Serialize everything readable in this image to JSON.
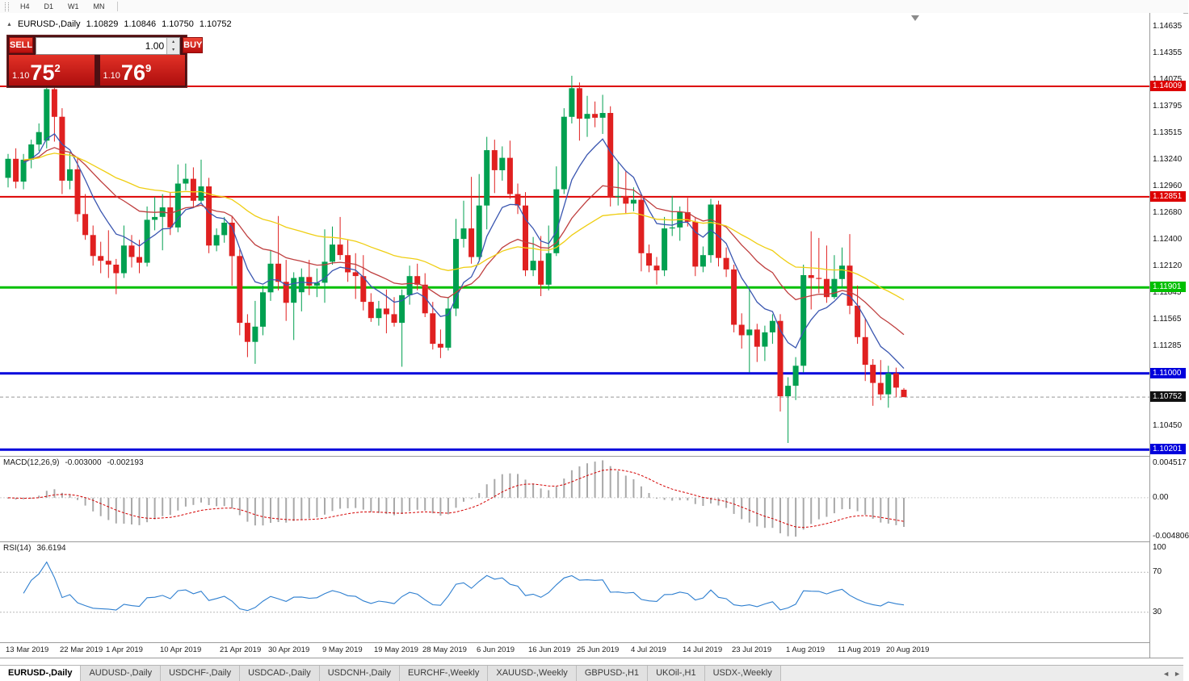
{
  "toolbar": {
    "buttons": [
      "H4",
      "D1",
      "W1",
      "MN"
    ]
  },
  "chart_header": {
    "title": "EURUSD-,Daily",
    "open": "1.10829",
    "high": "1.10846",
    "low": "1.10750",
    "close": "1.10752"
  },
  "trade_panel": {
    "sell_label": "SELL",
    "buy_label": "BUY",
    "volume": "1.00",
    "sell_price": {
      "prefix": "1.10",
      "big": "75",
      "sup": "2"
    },
    "buy_price": {
      "prefix": "1.10",
      "big": "76",
      "sup": "9"
    }
  },
  "price_axis": {
    "ticks": [
      {
        "label": "1.14635",
        "price": 1.14635
      },
      {
        "label": "1.14355",
        "price": 1.14355
      },
      {
        "label": "1.14075",
        "price": 1.14075
      },
      {
        "label": "1.13795",
        "price": 1.13795
      },
      {
        "label": "1.13515",
        "price": 1.13515
      },
      {
        "label": "1.13240",
        "price": 1.1324
      },
      {
        "label": "1.12960",
        "price": 1.1296
      },
      {
        "label": "1.12680",
        "price": 1.1268
      },
      {
        "label": "1.12400",
        "price": 1.124
      },
      {
        "label": "1.12120",
        "price": 1.1212
      },
      {
        "label": "1.11845",
        "price": 1.11845
      },
      {
        "label": "1.11565",
        "price": 1.11565
      },
      {
        "label": "1.11285",
        "price": 1.11285
      },
      {
        "label": "1.10450",
        "price": 1.1045
      }
    ]
  },
  "chart_data": {
    "type": "candlestick",
    "symbol": "EURUSD-",
    "timeframe": "Daily",
    "ylim": {
      "max": 1.14779,
      "min": 1.10135
    },
    "colors": {
      "up": "#00A050",
      "down": "#E02020"
    },
    "levels": [
      {
        "label": "1.14009",
        "price": 1.14009,
        "color": "#DD0000",
        "width": 2
      },
      {
        "label": "1.12851",
        "price": 1.12851,
        "color": "#DD0000",
        "width": 2
      },
      {
        "label": "1.11901",
        "price": 1.11901,
        "color": "#00C000",
        "width": 3
      },
      {
        "label": "1.11000",
        "price": 1.11,
        "color": "#0000DC",
        "width": 3
      },
      {
        "label": "1.10201",
        "price": 1.10201,
        "color": "#0000DC",
        "width": 3
      }
    ],
    "current_price": {
      "label": "1.10752",
      "price": 1.10752,
      "color": "#111111"
    },
    "moving_averages": [
      {
        "period": 8,
        "color": "#3A56B0"
      },
      {
        "period": 21,
        "color": "#BF3F3F"
      },
      {
        "period": 45,
        "color": "#EFCE12"
      }
    ],
    "candles": [
      [
        "2019.03.13",
        1.1305,
        1.133,
        1.1295,
        1.1325
      ],
      [
        "2019.03.14",
        1.1325,
        1.1336,
        1.1294,
        1.1301
      ],
      [
        "2019.03.15",
        1.1301,
        1.133,
        1.1293,
        1.1324
      ],
      [
        "2019.03.18",
        1.1324,
        1.1345,
        1.1315,
        1.134
      ],
      [
        "2019.03.19",
        1.134,
        1.1362,
        1.1333,
        1.1353
      ],
      [
        "2019.03.20",
        1.1344,
        1.1403,
        1.1336,
        1.1398
      ],
      [
        "2019.03.21",
        1.1398,
        1.14,
        1.1343,
        1.1369
      ],
      [
        "2019.03.22",
        1.1369,
        1.1378,
        1.1288,
        1.1302
      ],
      [
        "2019.03.25",
        1.1302,
        1.1331,
        1.1293,
        1.1314
      ],
      [
        "2019.03.26",
        1.1314,
        1.1327,
        1.1259,
        1.1267
      ],
      [
        "2019.03.27",
        1.1267,
        1.1288,
        1.124,
        1.1245
      ],
      [
        "2019.03.28",
        1.1245,
        1.1255,
        1.1213,
        1.1223
      ],
      [
        "2019.03.29",
        1.1223,
        1.1238,
        1.1205,
        1.1218
      ],
      [
        "2019.04.01",
        1.1218,
        1.125,
        1.12,
        1.1214
      ],
      [
        "2019.04.02",
        1.1214,
        1.122,
        1.1183,
        1.1205
      ],
      [
        "2019.04.03",
        1.1205,
        1.1255,
        1.12,
        1.1234
      ],
      [
        "2019.04.04",
        1.1234,
        1.1245,
        1.1211,
        1.1222
      ],
      [
        "2019.04.05",
        1.1222,
        1.124,
        1.1205,
        1.1216
      ],
      [
        "2019.04.08",
        1.1216,
        1.1275,
        1.1212,
        1.1261
      ],
      [
        "2019.04.09",
        1.1261,
        1.1285,
        1.125,
        1.1264
      ],
      [
        "2019.04.10",
        1.1264,
        1.1288,
        1.1229,
        1.1274
      ],
      [
        "2019.04.11",
        1.1274,
        1.129,
        1.1245,
        1.1253
      ],
      [
        "2019.04.12",
        1.1253,
        1.1319,
        1.1248,
        1.1299
      ],
      [
        "2019.04.15",
        1.1299,
        1.132,
        1.1292,
        1.1304
      ],
      [
        "2019.04.16",
        1.1304,
        1.1316,
        1.1274,
        1.1281
      ],
      [
        "2019.04.17",
        1.1281,
        1.1324,
        1.1278,
        1.1296
      ],
      [
        "2019.04.18",
        1.1296,
        1.1305,
        1.1226,
        1.1234
      ],
      [
        "2019.04.19",
        1.1234,
        1.1252,
        1.1228,
        1.1245
      ],
      [
        "2019.04.22",
        1.1245,
        1.1264,
        1.1237,
        1.1258
      ],
      [
        "2019.04.23",
        1.1258,
        1.1265,
        1.1192,
        1.1223
      ],
      [
        "2019.04.24",
        1.1223,
        1.123,
        1.114,
        1.1153
      ],
      [
        "2019.04.25",
        1.1153,
        1.1162,
        1.1117,
        1.1133
      ],
      [
        "2019.04.26",
        1.1133,
        1.1176,
        1.111,
        1.1149
      ],
      [
        "2019.04.29",
        1.1149,
        1.1192,
        1.114,
        1.1185
      ],
      [
        "2019.04.30",
        1.1185,
        1.1229,
        1.1176,
        1.1215
      ],
      [
        "2019.05.01",
        1.1215,
        1.1265,
        1.1187,
        1.1196
      ],
      [
        "2019.05.02",
        1.1196,
        1.1219,
        1.1155,
        1.1174
      ],
      [
        "2019.05.03",
        1.1174,
        1.1206,
        1.1135,
        1.12
      ],
      [
        "2019.05.06",
        1.1185,
        1.121,
        1.1165,
        1.1201
      ],
      [
        "2019.05.07",
        1.1201,
        1.1219,
        1.1182,
        1.1192
      ],
      [
        "2019.05.08",
        1.1192,
        1.121,
        1.118,
        1.1195
      ],
      [
        "2019.05.09",
        1.1195,
        1.1251,
        1.1174,
        1.1217
      ],
      [
        "2019.05.10",
        1.1217,
        1.1254,
        1.1214,
        1.1235
      ],
      [
        "2019.05.13",
        1.1235,
        1.1264,
        1.1219,
        1.1224
      ],
      [
        "2019.05.14",
        1.1224,
        1.124,
        1.1196,
        1.1206
      ],
      [
        "2019.05.15",
        1.1206,
        1.1226,
        1.1178,
        1.1202
      ],
      [
        "2019.05.16",
        1.1202,
        1.1224,
        1.1166,
        1.1175
      ],
      [
        "2019.05.17",
        1.1175,
        1.1184,
        1.1154,
        1.1158
      ],
      [
        "2019.05.20",
        1.1158,
        1.1176,
        1.115,
        1.1168
      ],
      [
        "2019.05.21",
        1.1168,
        1.1188,
        1.1142,
        1.1162
      ],
      [
        "2019.05.22",
        1.1162,
        1.118,
        1.1149,
        1.1153
      ],
      [
        "2019.05.23",
        1.1153,
        1.1188,
        1.1107,
        1.1182
      ],
      [
        "2019.05.24",
        1.1182,
        1.1213,
        1.1172,
        1.1202
      ],
      [
        "2019.05.27",
        1.1202,
        1.1215,
        1.1187,
        1.1193
      ],
      [
        "2019.05.28",
        1.1193,
        1.1205,
        1.1159,
        1.1163
      ],
      [
        "2019.05.29",
        1.1163,
        1.1175,
        1.1125,
        1.1131
      ],
      [
        "2019.05.30",
        1.1131,
        1.1146,
        1.1116,
        1.1127
      ],
      [
        "2019.05.31",
        1.1127,
        1.118,
        1.1124,
        1.1168
      ],
      [
        "2019.06.03",
        1.1168,
        1.1262,
        1.116,
        1.1241
      ],
      [
        "2019.06.04",
        1.1241,
        1.1281,
        1.1232,
        1.1252
      ],
      [
        "2019.06.05",
        1.1252,
        1.1306,
        1.1215,
        1.1222
      ],
      [
        "2019.06.06",
        1.1222,
        1.1309,
        1.1219,
        1.1276
      ],
      [
        "2019.06.07",
        1.1276,
        1.1348,
        1.1251,
        1.1334
      ],
      [
        "2019.06.10",
        1.1334,
        1.1345,
        1.1289,
        1.1313
      ],
      [
        "2019.06.11",
        1.1313,
        1.1338,
        1.1302,
        1.1326
      ],
      [
        "2019.06.12",
        1.1326,
        1.1344,
        1.1283,
        1.1288
      ],
      [
        "2019.06.13",
        1.1288,
        1.1299,
        1.1267,
        1.1276
      ],
      [
        "2019.06.14",
        1.1276,
        1.129,
        1.1202,
        1.1208
      ],
      [
        "2019.06.17",
        1.1208,
        1.1243,
        1.1202,
        1.1218
      ],
      [
        "2019.06.18",
        1.1218,
        1.1244,
        1.1181,
        1.1193
      ],
      [
        "2019.06.19",
        1.1193,
        1.1255,
        1.1187,
        1.1226
      ],
      [
        "2019.06.20",
        1.1226,
        1.1317,
        1.1223,
        1.1293
      ],
      [
        "2019.06.21",
        1.1293,
        1.1378,
        1.1288,
        1.1369
      ],
      [
        "2019.06.24",
        1.1369,
        1.1412,
        1.1362,
        1.1399
      ],
      [
        "2019.06.25",
        1.1399,
        1.1405,
        1.1344,
        1.1367
      ],
      [
        "2019.06.26",
        1.1367,
        1.1391,
        1.1348,
        1.1372
      ],
      [
        "2019.06.27",
        1.1372,
        1.1385,
        1.1358,
        1.1368
      ],
      [
        "2019.06.28",
        1.1368,
        1.1392,
        1.1351,
        1.1373
      ],
      [
        "2019.07.01",
        1.1373,
        1.138,
        1.1275,
        1.1285
      ],
      [
        "2019.07.02",
        1.1285,
        1.1322,
        1.1276,
        1.1286
      ],
      [
        "2019.07.03",
        1.1286,
        1.1312,
        1.1268,
        1.1278
      ],
      [
        "2019.07.04",
        1.1278,
        1.1295,
        1.127,
        1.1282
      ],
      [
        "2019.07.05",
        1.1282,
        1.1287,
        1.1207,
        1.1226
      ],
      [
        "2019.07.08",
        1.1226,
        1.1235,
        1.1206,
        1.1213
      ],
      [
        "2019.07.09",
        1.1213,
        1.1222,
        1.1193,
        1.1208
      ],
      [
        "2019.07.10",
        1.1208,
        1.1264,
        1.1202,
        1.1252
      ],
      [
        "2019.07.11",
        1.1252,
        1.1286,
        1.1244,
        1.1253
      ],
      [
        "2019.07.12",
        1.1253,
        1.1275,
        1.1239,
        1.1269
      ],
      [
        "2019.07.15",
        1.1269,
        1.1284,
        1.1254,
        1.1259
      ],
      [
        "2019.07.16",
        1.1259,
        1.1264,
        1.1202,
        1.1212
      ],
      [
        "2019.07.17",
        1.1212,
        1.1233,
        1.1206,
        1.1224
      ],
      [
        "2019.07.18",
        1.1224,
        1.1283,
        1.1216,
        1.1277
      ],
      [
        "2019.07.19",
        1.1277,
        1.1281,
        1.1212,
        1.1221
      ],
      [
        "2019.07.22",
        1.1221,
        1.1232,
        1.1201,
        1.1209
      ],
      [
        "2019.07.23",
        1.1209,
        1.1214,
        1.1143,
        1.1151
      ],
      [
        "2019.07.24",
        1.1151,
        1.1163,
        1.1126,
        1.114
      ],
      [
        "2019.07.25",
        1.114,
        1.1188,
        1.1101,
        1.1146
      ],
      [
        "2019.07.26",
        1.1146,
        1.1152,
        1.1112,
        1.1128
      ],
      [
        "2019.07.29",
        1.1128,
        1.115,
        1.1113,
        1.1143
      ],
      [
        "2019.07.30",
        1.1143,
        1.1162,
        1.1131,
        1.1155
      ],
      [
        "2019.07.31",
        1.1155,
        1.1162,
        1.106,
        1.1076
      ],
      [
        "2019.08.01",
        1.1076,
        1.1096,
        1.1027,
        1.1087
      ],
      [
        "2019.08.02",
        1.1087,
        1.1117,
        1.1072,
        1.1108
      ],
      [
        "2019.08.05",
        1.1108,
        1.1214,
        1.1101,
        1.1203
      ],
      [
        "2019.08.06",
        1.1203,
        1.1249,
        1.1167,
        1.12
      ],
      [
        "2019.08.07",
        1.12,
        1.1242,
        1.1184,
        1.1199
      ],
      [
        "2019.08.08",
        1.1199,
        1.1234,
        1.1174,
        1.118
      ],
      [
        "2019.08.09",
        1.118,
        1.1224,
        1.1178,
        1.1199
      ],
      [
        "2019.08.12",
        1.1199,
        1.1232,
        1.1189,
        1.1213
      ],
      [
        "2019.08.13",
        1.1213,
        1.1246,
        1.1162,
        1.1171
      ],
      [
        "2019.08.14",
        1.1171,
        1.1192,
        1.1131,
        1.1138
      ],
      [
        "2019.08.15",
        1.1138,
        1.1158,
        1.1092,
        1.1109
      ],
      [
        "2019.08.16",
        1.1109,
        1.1115,
        1.1066,
        1.109
      ],
      [
        "2019.08.19",
        1.109,
        1.1114,
        1.1072,
        1.1078
      ],
      [
        "2019.08.20",
        1.1078,
        1.1108,
        1.1064,
        1.11
      ],
      [
        "2019.08.21",
        1.11,
        1.1106,
        1.1075,
        1.1085
      ],
      [
        "2019.08.22",
        1.10829,
        1.10846,
        1.1075,
        1.10752
      ]
    ]
  },
  "macd_panel": {
    "label": "MACD(12,26,9)",
    "main_value": "-0.003000",
    "signal_value": "-0.002193",
    "fast": 12,
    "slow": 26,
    "smoothing": 9,
    "axis_max": "0.004517",
    "axis_zero": "0.00",
    "axis_min": "-0.004806",
    "max": 0.004517,
    "min": -0.004806,
    "histogram_color": "#A9A9A9",
    "signal_color": "#D40000"
  },
  "rsi_panel": {
    "label": "RSI(14)",
    "value": "36.6194",
    "period": 14,
    "axis": [
      {
        "label": "100",
        "value": 100
      },
      {
        "label": "70",
        "value": 70
      },
      {
        "label": "30",
        "value": 30
      }
    ],
    "levels": [
      70,
      30
    ],
    "line_color": "#2E7FD0",
    "max": 100,
    "min": 0
  },
  "date_axis": {
    "labels": [
      {
        "text": "13 Mar 2019",
        "bar": 0
      },
      {
        "text": "22 Mar 2019",
        "bar": 7
      },
      {
        "text": "1 Apr 2019",
        "bar": 13
      },
      {
        "text": "10 Apr 2019",
        "bar": 20
      },
      {
        "text": "21 Apr 2019",
        "bar": 27.7
      },
      {
        "text": "30 Apr 2019",
        "bar": 34
      },
      {
        "text": "9 May 2019",
        "bar": 41
      },
      {
        "text": "19 May 2019",
        "bar": 47.7
      },
      {
        "text": "28 May 2019",
        "bar": 54
      },
      {
        "text": "6 Jun 2019",
        "bar": 61
      },
      {
        "text": "16 Jun 2019",
        "bar": 67.7
      },
      {
        "text": "25 Jun 2019",
        "bar": 74
      },
      {
        "text": "4 Jul 2019",
        "bar": 81
      },
      {
        "text": "14 Jul 2019",
        "bar": 87.7
      },
      {
        "text": "23 Jul 2019",
        "bar": 94
      },
      {
        "text": "1 Aug 2019",
        "bar": 101
      },
      {
        "text": "11 Aug 2019",
        "bar": 107.7
      },
      {
        "text": "20 Aug 2019",
        "bar": 114
      }
    ]
  },
  "tab_bar": {
    "scroll_left_icon": "◄",
    "scroll_right_icon": "►",
    "tabs": [
      {
        "label": "EURUSD-,Daily",
        "active": true
      },
      {
        "label": "AUDUSD-,Daily",
        "active": false
      },
      {
        "label": "USDCHF-,Daily",
        "active": false
      },
      {
        "label": "USDCAD-,Daily",
        "active": false
      },
      {
        "label": "USDCNH-,Daily",
        "active": false
      },
      {
        "label": "EURCHF-,Weekly",
        "active": false
      },
      {
        "label": "XAUUSD-,Weekly",
        "active": false
      },
      {
        "label": "GBPUSD-,H1",
        "active": false
      },
      {
        "label": "UKOil-,H1",
        "active": false
      },
      {
        "label": "USDX-,Weekly",
        "active": false
      }
    ]
  }
}
